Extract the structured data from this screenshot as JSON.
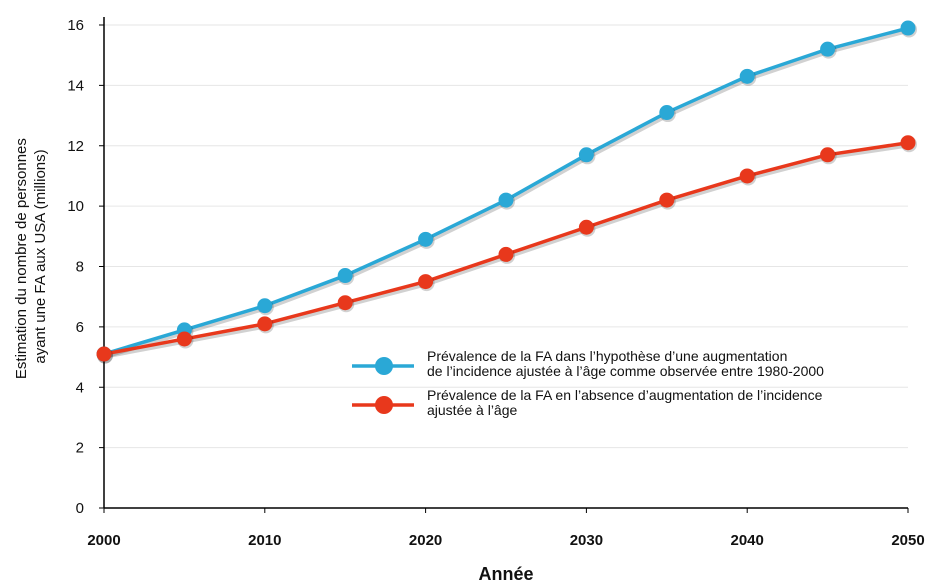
{
  "chart_data": {
    "type": "line",
    "title": "",
    "xlabel": "Année",
    "ylabel": [
      "Estimation du nombre de personnes",
      "ayant une FA aux USA (millions)"
    ],
    "x": [
      2000,
      2005,
      2010,
      2015,
      2020,
      2025,
      2030,
      2035,
      2040,
      2045,
      2050
    ],
    "xlim": [
      2000,
      2050
    ],
    "ylim": [
      0,
      16
    ],
    "xticks": [
      2000,
      2010,
      2020,
      2030,
      2040,
      2050
    ],
    "yticks": [
      0,
      2,
      4,
      6,
      8,
      10,
      12,
      14,
      16
    ],
    "grid": "horizontal",
    "legend_position": "center-right",
    "series": [
      {
        "name": [
          "Prévalence de la FA dans l’hypothèse d’une augmentation",
          "de l’incidence ajustée à l’âge comme observée entre 1980-2000"
        ],
        "color": "#2aa8d6",
        "values": [
          5.1,
          5.9,
          6.7,
          7.7,
          8.9,
          10.2,
          11.7,
          13.1,
          14.3,
          15.2,
          15.9
        ]
      },
      {
        "name": [
          "Prévalence de la FA en l’absence d’augmentation de l’incidence",
          "ajustée à l’âge"
        ],
        "color": "#e8381c",
        "values": [
          5.1,
          5.6,
          6.1,
          6.8,
          7.5,
          8.4,
          9.3,
          10.2,
          11.0,
          11.7,
          12.1
        ]
      }
    ]
  }
}
